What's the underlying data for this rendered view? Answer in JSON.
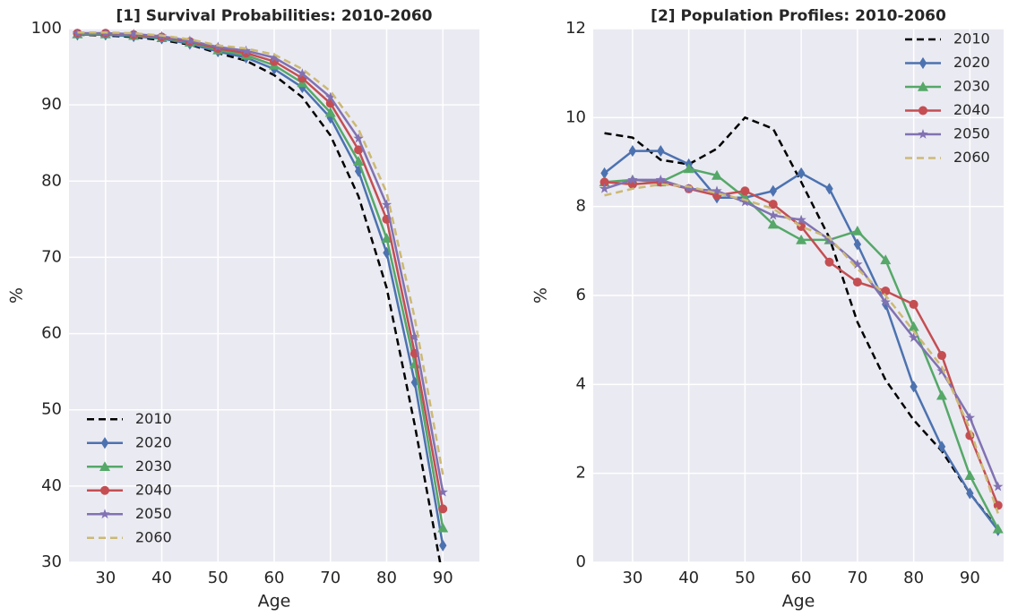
{
  "chart_data": [
    {
      "type": "line",
      "title": "[1] Survival Probabilities: 2010-2060",
      "xlabel": "Age",
      "ylabel": "%",
      "x": [
        25,
        30,
        35,
        40,
        45,
        50,
        55,
        60,
        65,
        70,
        75,
        80,
        85,
        90
      ],
      "xlim": [
        23.5,
        96.5
      ],
      "xticks": [
        30,
        40,
        50,
        60,
        70,
        80,
        90
      ],
      "ylim": [
        30,
        100
      ],
      "yticks": [
        30,
        40,
        50,
        60,
        70,
        80,
        90,
        100
      ],
      "grid": true,
      "legend": "lower left",
      "series": [
        {
          "name": "2010",
          "color": "#000000",
          "linestyle": "dashed",
          "marker": "none",
          "values": [
            99.2,
            99.1,
            98.9,
            98.5,
            97.9,
            96.8,
            95.8,
            93.9,
            91.0,
            86.0,
            78.0,
            66.0,
            48.0,
            28.0
          ]
        },
        {
          "name": "2020",
          "color": "#4c72b0",
          "linestyle": "solid",
          "marker": "diamond",
          "values": [
            99.2,
            99.2,
            99.0,
            98.7,
            98.0,
            97.0,
            96.2,
            94.7,
            92.3,
            88.3,
            81.3,
            70.6,
            53.6,
            32.2
          ]
        },
        {
          "name": "2030",
          "color": "#55a868",
          "linestyle": "solid",
          "marker": "triangle",
          "values": [
            99.3,
            99.3,
            99.1,
            98.8,
            98.2,
            97.2,
            96.5,
            95.2,
            92.9,
            89.0,
            82.6,
            72.5,
            56.0,
            34.5
          ]
        },
        {
          "name": "2040",
          "color": "#c44e52",
          "linestyle": "solid",
          "marker": "circle",
          "values": [
            99.4,
            99.4,
            99.2,
            98.9,
            98.3,
            97.4,
            96.8,
            95.7,
            93.5,
            90.2,
            84.1,
            75.0,
            57.4,
            37.0
          ]
        },
        {
          "name": "2050",
          "color": "#8172b2",
          "linestyle": "solid",
          "marker": "star",
          "values": [
            99.4,
            99.4,
            99.3,
            99.0,
            98.4,
            97.6,
            97.1,
            96.2,
            94.1,
            91.0,
            85.6,
            76.9,
            59.6,
            39.2
          ]
        },
        {
          "name": "2060",
          "color": "#ccb974",
          "linestyle": "dashed",
          "marker": "none",
          "values": [
            99.5,
            99.5,
            99.4,
            99.1,
            98.6,
            97.8,
            97.4,
            96.6,
            94.7,
            91.8,
            86.8,
            78.5,
            62.0,
            41.5
          ]
        }
      ]
    },
    {
      "type": "line",
      "title": "[2] Population Profiles: 2010-2060",
      "xlabel": "Age",
      "ylabel": "%",
      "x": [
        25,
        30,
        35,
        40,
        45,
        50,
        55,
        60,
        65,
        70,
        75,
        80,
        85,
        90,
        95
      ],
      "xlim": [
        23,
        96
      ],
      "xticks": [
        30,
        40,
        50,
        60,
        70,
        80,
        90
      ],
      "ylim": [
        0,
        12
      ],
      "yticks": [
        0,
        2,
        4,
        6,
        8,
        10,
        12
      ],
      "grid": true,
      "legend": "upper right",
      "series": [
        {
          "name": "2010",
          "color": "#000000",
          "linestyle": "dashed",
          "marker": "none",
          "values": [
            9.65,
            9.55,
            9.05,
            8.95,
            9.3,
            10.0,
            9.75,
            8.55,
            7.3,
            5.4,
            4.1,
            3.2,
            2.5,
            1.55,
            0.75
          ]
        },
        {
          "name": "2020",
          "color": "#4c72b0",
          "linestyle": "solid",
          "marker": "diamond",
          "values": [
            8.75,
            9.25,
            9.25,
            8.95,
            8.2,
            8.2,
            8.35,
            8.75,
            8.4,
            7.15,
            5.8,
            3.95,
            2.6,
            1.55,
            0.72
          ]
        },
        {
          "name": "2030",
          "color": "#55a868",
          "linestyle": "solid",
          "marker": "triangle",
          "values": [
            8.55,
            8.6,
            8.55,
            8.85,
            8.7,
            8.2,
            7.6,
            7.25,
            7.25,
            7.45,
            6.8,
            5.3,
            3.75,
            1.95,
            0.75
          ]
        },
        {
          "name": "2040",
          "color": "#c44e52",
          "linestyle": "solid",
          "marker": "circle",
          "values": [
            8.55,
            8.5,
            8.55,
            8.4,
            8.25,
            8.35,
            8.05,
            7.55,
            6.75,
            6.3,
            6.1,
            5.8,
            4.65,
            2.85,
            1.28
          ]
        },
        {
          "name": "2050",
          "color": "#8172b2",
          "linestyle": "solid",
          "marker": "star",
          "values": [
            8.4,
            8.6,
            8.6,
            8.4,
            8.35,
            8.1,
            7.8,
            7.7,
            7.25,
            6.7,
            5.85,
            5.05,
            4.3,
            3.25,
            1.7
          ]
        },
        {
          "name": "2060",
          "color": "#ccb974",
          "linestyle": "dashed",
          "marker": "none",
          "values": [
            8.25,
            8.4,
            8.5,
            8.45,
            8.3,
            8.15,
            7.95,
            7.55,
            7.3,
            6.6,
            6.0,
            5.2,
            4.4,
            3.0,
            1.1
          ]
        }
      ]
    }
  ]
}
